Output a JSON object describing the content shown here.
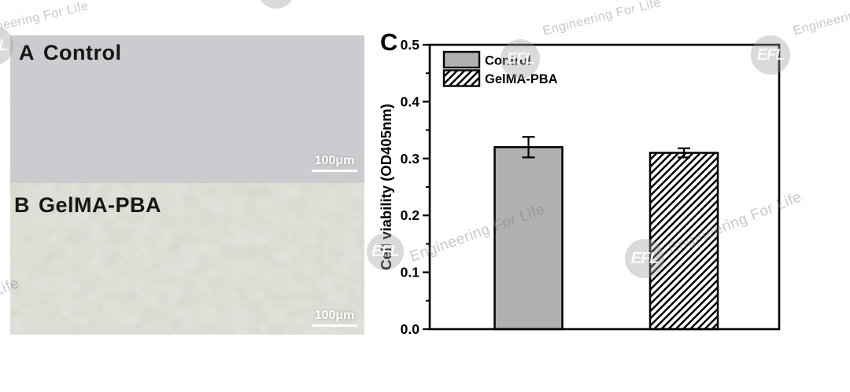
{
  "watermark": {
    "logo": "EFL",
    "text": "Engineering For Life"
  },
  "panels": {
    "a": {
      "label_letter": "A",
      "label_name": "Control",
      "scalebar": "100μm"
    },
    "b": {
      "label_letter": "B",
      "label_name": "GelMA-PBA",
      "scalebar": "100μm"
    },
    "c": {
      "label_letter": "C"
    }
  },
  "chart_data": {
    "type": "bar",
    "title": "",
    "xlabel": "",
    "ylabel": "Cell viability (OD405nm)",
    "ylim": [
      0.0,
      0.5
    ],
    "ytick_step": 0.1,
    "minor_tick_step": 0.05,
    "ytick_labels": [
      "0.0",
      "0.1",
      "0.2",
      "0.3",
      "0.4",
      "0.5"
    ],
    "grid": false,
    "legend_position": "top-left",
    "categories": [
      "Control",
      "GelMA-PBA"
    ],
    "series": [
      {
        "name": "Control",
        "value": 0.32,
        "error": 0.018,
        "style": "solid",
        "fill_color": "#b0b0b0"
      },
      {
        "name": "GelMA-PBA",
        "value": 0.31,
        "error": 0.008,
        "style": "hatch",
        "fill_color": "#ffffff"
      }
    ]
  },
  "colors": {
    "axis": "#000000",
    "bar_gray": "#b0b0b0",
    "panel_a_base": "#cbccd0",
    "panel_b_base": "#e0e1da",
    "watermark_gray": "#c4c4c4"
  }
}
